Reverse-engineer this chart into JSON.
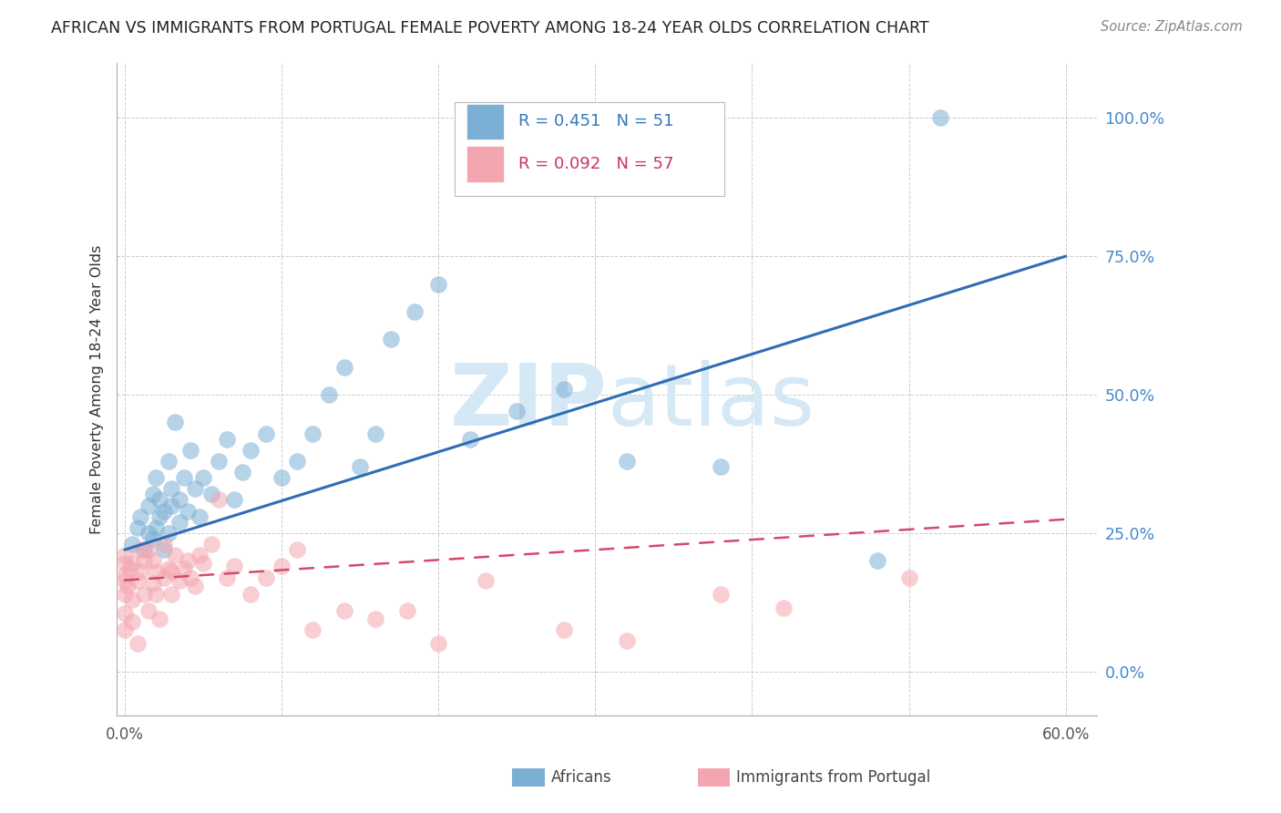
{
  "title": "AFRICAN VS IMMIGRANTS FROM PORTUGAL FEMALE POVERTY AMONG 18-24 YEAR OLDS CORRELATION CHART",
  "source": "Source: ZipAtlas.com",
  "ylabel": "Female Poverty Among 18-24 Year Olds",
  "ytick_labels": [
    "0.0%",
    "25.0%",
    "50.0%",
    "75.0%",
    "100.0%"
  ],
  "ytick_values": [
    0.0,
    0.25,
    0.5,
    0.75,
    1.0
  ],
  "xtick_values": [
    0.0,
    0.1,
    0.2,
    0.3,
    0.4,
    0.5,
    0.6
  ],
  "xlim": [
    -0.005,
    0.62
  ],
  "ylim": [
    -0.08,
    1.1
  ],
  "legend_label1": "Africans",
  "legend_label2": "Immigrants from Portugal",
  "R1": 0.451,
  "N1": 51,
  "R2": 0.092,
  "N2": 57,
  "blue_color": "#7BAFD4",
  "pink_color": "#F4A6B0",
  "trendline1_color": "#2E6DB4",
  "trendline2_color": "#D44A6A",
  "title_color": "#222222",
  "axis_label_color": "#333333",
  "right_tick_color": "#4488CC",
  "watermark_color": "#D5E8F5",
  "grid_color": "#CCCCCC",
  "africans_x": [
    0.005,
    0.008,
    0.01,
    0.012,
    0.015,
    0.015,
    0.018,
    0.018,
    0.02,
    0.02,
    0.022,
    0.022,
    0.025,
    0.025,
    0.028,
    0.028,
    0.03,
    0.03,
    0.032,
    0.035,
    0.035,
    0.038,
    0.04,
    0.042,
    0.045,
    0.048,
    0.05,
    0.055,
    0.06,
    0.065,
    0.07,
    0.075,
    0.08,
    0.09,
    0.1,
    0.11,
    0.12,
    0.13,
    0.14,
    0.15,
    0.16,
    0.17,
    0.185,
    0.2,
    0.22,
    0.25,
    0.28,
    0.32,
    0.38,
    0.48,
    0.52
  ],
  "africans_y": [
    0.23,
    0.26,
    0.28,
    0.22,
    0.25,
    0.3,
    0.24,
    0.32,
    0.26,
    0.35,
    0.28,
    0.31,
    0.22,
    0.29,
    0.25,
    0.38,
    0.3,
    0.33,
    0.45,
    0.27,
    0.31,
    0.35,
    0.29,
    0.4,
    0.33,
    0.28,
    0.35,
    0.32,
    0.38,
    0.42,
    0.31,
    0.36,
    0.4,
    0.43,
    0.35,
    0.38,
    0.43,
    0.5,
    0.55,
    0.37,
    0.43,
    0.6,
    0.65,
    0.7,
    0.42,
    0.47,
    0.51,
    0.38,
    0.37,
    0.2,
    1.0
  ],
  "portugal_x": [
    0.0,
    0.0,
    0.0,
    0.0,
    0.0,
    0.0,
    0.0,
    0.002,
    0.003,
    0.005,
    0.005,
    0.005,
    0.008,
    0.008,
    0.01,
    0.01,
    0.012,
    0.012,
    0.015,
    0.015,
    0.018,
    0.018,
    0.02,
    0.02,
    0.022,
    0.025,
    0.025,
    0.028,
    0.03,
    0.03,
    0.032,
    0.035,
    0.038,
    0.04,
    0.042,
    0.045,
    0.048,
    0.05,
    0.055,
    0.06,
    0.065,
    0.07,
    0.08,
    0.09,
    0.1,
    0.11,
    0.12,
    0.14,
    0.16,
    0.18,
    0.2,
    0.23,
    0.28,
    0.32,
    0.38,
    0.42,
    0.5
  ],
  "portugal_y": [
    0.14,
    0.165,
    0.175,
    0.195,
    0.21,
    0.105,
    0.075,
    0.155,
    0.185,
    0.195,
    0.13,
    0.09,
    0.05,
    0.165,
    0.18,
    0.22,
    0.14,
    0.2,
    0.11,
    0.22,
    0.16,
    0.2,
    0.14,
    0.18,
    0.095,
    0.23,
    0.17,
    0.185,
    0.18,
    0.14,
    0.21,
    0.165,
    0.185,
    0.2,
    0.17,
    0.155,
    0.21,
    0.195,
    0.23,
    0.31,
    0.17,
    0.19,
    0.14,
    0.17,
    0.19,
    0.22,
    0.075,
    0.11,
    0.095,
    0.11,
    0.05,
    0.165,
    0.075,
    0.055,
    0.14,
    0.115,
    0.17
  ],
  "trendline1_x": [
    0.0,
    0.6
  ],
  "trendline1_y": [
    0.22,
    0.75
  ],
  "trendline2_x": [
    0.0,
    0.6
  ],
  "trendline2_y": [
    0.165,
    0.275
  ]
}
